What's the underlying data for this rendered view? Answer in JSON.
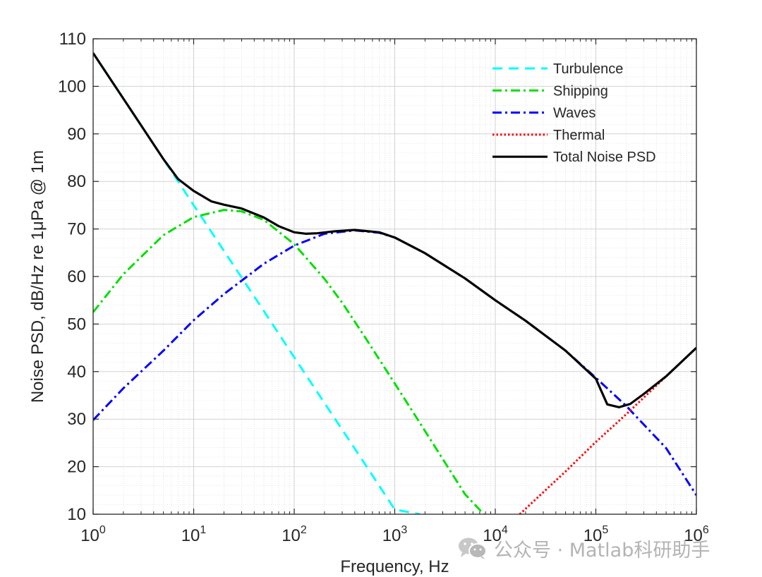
{
  "chart_data": {
    "type": "line",
    "xlabel": "Frequency, Hz",
    "ylabel": "Noise PSD, dB/Hz re 1μPa @ 1m",
    "x_scale": "log",
    "xlim": [
      1,
      1000000
    ],
    "ylim": [
      10,
      110
    ],
    "x_ticks": [
      {
        "value": 1,
        "base": "10",
        "exp": "0"
      },
      {
        "value": 10,
        "base": "10",
        "exp": "1"
      },
      {
        "value": 100,
        "base": "10",
        "exp": "2"
      },
      {
        "value": 1000,
        "base": "10",
        "exp": "3"
      },
      {
        "value": 10000,
        "base": "10",
        "exp": "4"
      },
      {
        "value": 100000,
        "base": "10",
        "exp": "5"
      },
      {
        "value": 1000000,
        "base": "10",
        "exp": "6"
      }
    ],
    "y_ticks": [
      10,
      20,
      30,
      40,
      50,
      60,
      70,
      80,
      90,
      100,
      110
    ],
    "grid": true,
    "minor_grid": true,
    "legend_position": "top-right",
    "series": [
      {
        "name": "Turbulence",
        "color": "#00ffff",
        "style": "dashed",
        "x": [
          1,
          2,
          5,
          7,
          10,
          20,
          50,
          100,
          200,
          500,
          1000,
          1780
        ],
        "y": [
          107,
          97.4,
          84.7,
          80.0,
          75.0,
          65.4,
          52.7,
          43.0,
          33.4,
          20.7,
          11.0,
          10.0
        ]
      },
      {
        "name": "Shipping",
        "color": "#00e000",
        "style": "dashdot",
        "x": [
          1,
          2,
          5,
          10,
          20,
          30,
          50,
          100,
          200,
          300,
          500,
          1000,
          2000,
          5000,
          7700
        ],
        "y": [
          52.5,
          60.5,
          68.7,
          72.5,
          74.0,
          73.7,
          71.9,
          66.8,
          59.5,
          54.5,
          47.4,
          37.5,
          27.5,
          14.2,
          10.0
        ]
      },
      {
        "name": "Waves",
        "color": "#0000ff",
        "style": "dashdot",
        "x": [
          1,
          2,
          5,
          10,
          20,
          50,
          100,
          200,
          400,
          700,
          1000,
          2000,
          5000,
          10000,
          20000,
          50000,
          100000,
          200000,
          500000,
          1000000
        ],
        "y": [
          29.8,
          36.5,
          44.4,
          50.8,
          56.3,
          62.7,
          66.5,
          69.0,
          69.7,
          69.2,
          68.2,
          64.9,
          59.6,
          55.0,
          50.7,
          44.4,
          38.7,
          32.8,
          23.9,
          14.0
        ]
      },
      {
        "name": "Thermal",
        "color": "#ff0000",
        "style": "dotted",
        "x": [
          17500,
          50000,
          100000,
          200000,
          500000,
          1000000
        ],
        "y": [
          10.0,
          19.0,
          25.2,
          31.0,
          39.0,
          45.0
        ]
      },
      {
        "name": "Total Noise PSD",
        "color": "#000000",
        "style": "solid",
        "x": [
          1,
          2,
          5,
          7,
          10,
          15,
          20,
          30,
          50,
          70,
          100,
          130,
          170,
          250,
          400,
          700,
          1000,
          2000,
          5000,
          10000,
          20000,
          50000,
          100000,
          130000,
          170000,
          220000,
          300000,
          500000,
          1000000
        ],
        "y": [
          107,
          97.4,
          84.7,
          80.5,
          78.0,
          75.8,
          75.1,
          74.3,
          72.4,
          70.6,
          69.3,
          69.0,
          69.1,
          69.5,
          69.8,
          69.3,
          68.2,
          64.9,
          59.6,
          55.0,
          50.7,
          44.4,
          38.5,
          33.1,
          32.5,
          33.2,
          35.3,
          39.0,
          45.0
        ]
      }
    ]
  },
  "watermark": {
    "text": "公众号 · Matlab科研助手",
    "icon": "wechat-icon"
  }
}
